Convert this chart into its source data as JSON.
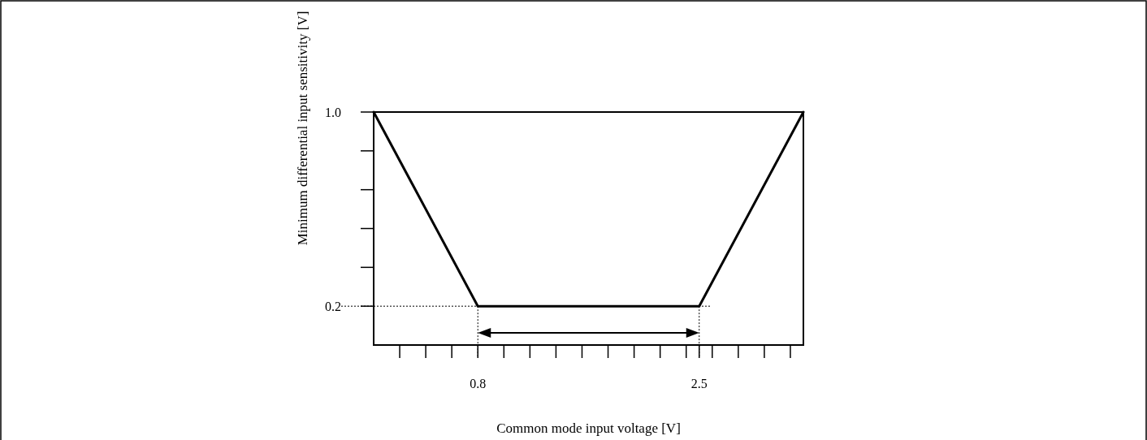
{
  "chart_data": {
    "type": "line",
    "xlabel": "Common mode input voltage [V]",
    "ylabel": "Minimum differential input sensitivity [V]",
    "x": [
      0,
      0.8,
      2.5,
      3.3
    ],
    "series": [
      {
        "color": "#000000",
        "values": [
          1.0,
          0.2,
          0.2,
          1.0
        ]
      }
    ],
    "xlim": [
      0,
      3.3
    ],
    "ylim": [
      0.04,
      1.0
    ],
    "xticks": [
      {
        "value": 0.2,
        "label": null
      },
      {
        "value": 0.4,
        "label": null
      },
      {
        "value": 0.6,
        "label": null
      },
      {
        "value": 0.8,
        "label": "0.8"
      },
      {
        "value": 1.0,
        "label": null
      },
      {
        "value": 1.2,
        "label": null
      },
      {
        "value": 1.4,
        "label": null
      },
      {
        "value": 1.6,
        "label": null
      },
      {
        "value": 1.8,
        "label": null
      },
      {
        "value": 2.0,
        "label": null
      },
      {
        "value": 2.2,
        "label": null
      },
      {
        "value": 2.4,
        "label": null
      },
      {
        "value": 2.5,
        "label": "2.5"
      },
      {
        "value": 2.6,
        "label": null
      },
      {
        "value": 2.8,
        "label": null
      },
      {
        "value": 3.0,
        "label": null
      },
      {
        "value": 3.2,
        "label": null
      }
    ],
    "yticks": [
      {
        "value": 0.2,
        "label": "0.2"
      },
      {
        "value": 0.36,
        "label": null
      },
      {
        "value": 0.52,
        "label": null
      },
      {
        "value": 0.68,
        "label": null
      },
      {
        "value": 0.84,
        "label": null
      },
      {
        "value": 1.0,
        "label": "1.0"
      }
    ],
    "ref_lines": [
      {
        "axis": "y",
        "value": 0.2,
        "line_style": "dotted",
        "color": "#000000"
      },
      {
        "axis": "x",
        "value": 0.8,
        "line_style": "dotted",
        "color": "#000000"
      },
      {
        "axis": "x",
        "value": 2.5,
        "line_style": "dotted",
        "color": "#000000"
      }
    ],
    "grid": false,
    "marker": "none",
    "line_style": "solid"
  }
}
